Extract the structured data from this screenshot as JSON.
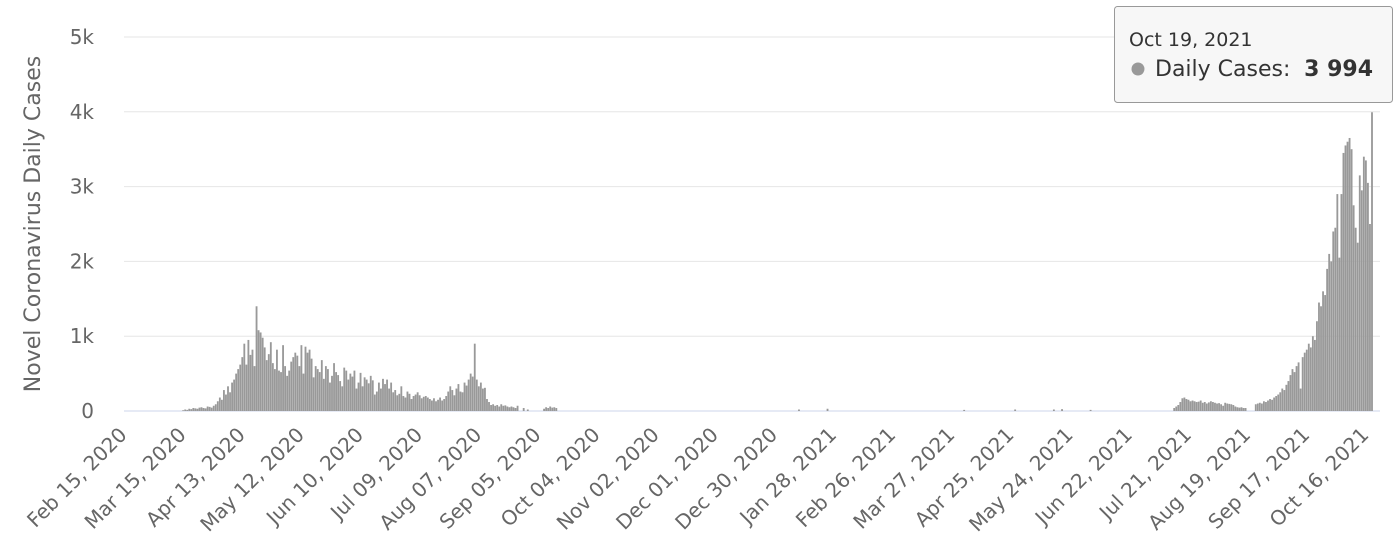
{
  "chart_data": {
    "type": "bar",
    "ylabel": "Novel Coronavirus Daily Cases",
    "color": "#999999",
    "grid": true,
    "ylim": [
      0,
      5000
    ],
    "yticks": [
      0,
      {
        "value": 1000,
        "label": "1k"
      },
      {
        "value": 2000,
        "label": "2k"
      },
      {
        "value": 3000,
        "label": "3k"
      },
      {
        "value": 4000,
        "label": "4k"
      },
      {
        "value": 5000,
        "label": "5k"
      }
    ],
    "tooltip": {
      "date": "Oct 19, 2021",
      "series_label": "Daily Cases:",
      "value_label": "3 994"
    },
    "categories": [
      "Feb 15, 2020",
      null,
      null,
      null,
      null,
      null,
      null,
      null,
      null,
      null,
      null,
      null,
      null,
      null,
      null,
      null,
      null,
      null,
      null,
      null,
      null,
      null,
      null,
      null,
      null,
      null,
      null,
      null,
      null,
      "Mar 15, 2020",
      null,
      null,
      null,
      null,
      null,
      null,
      null,
      null,
      null,
      null,
      null,
      null,
      null,
      null,
      null,
      null,
      null,
      null,
      null,
      null,
      null,
      null,
      null,
      null,
      null,
      null,
      null,
      null,
      "Apr 13, 2020",
      null,
      null,
      null,
      null,
      null,
      null,
      null,
      null,
      null,
      null,
      null,
      null,
      null,
      null,
      null,
      null,
      null,
      null,
      null,
      null,
      null,
      null,
      null,
      null,
      null,
      null,
      null,
      null,
      "May 12, 2020",
      null,
      null,
      null,
      null,
      null,
      null,
      null,
      null,
      null,
      null,
      null,
      null,
      null,
      null,
      null,
      null,
      null,
      null,
      null,
      null,
      null,
      null,
      null,
      null,
      null,
      null,
      null,
      null,
      "Jun 10, 2020",
      null,
      null,
      null,
      null,
      null,
      null,
      null,
      null,
      null,
      null,
      null,
      null,
      null,
      null,
      null,
      null,
      null,
      null,
      null,
      null,
      null,
      null,
      null,
      null,
      null,
      null,
      null,
      null,
      "Jul 09, 2020",
      null,
      null,
      null,
      null,
      null,
      null,
      null,
      null,
      null,
      null,
      null,
      null,
      null,
      null,
      null,
      null,
      null,
      null,
      null,
      null,
      null,
      null,
      null,
      null,
      null,
      null,
      null,
      null,
      "Aug 07, 2020",
      null,
      null,
      null,
      null,
      null,
      null,
      null,
      null,
      null,
      null,
      null,
      null,
      null,
      null,
      null,
      null,
      null,
      null,
      null,
      null,
      null,
      null,
      null,
      null,
      null,
      null,
      null,
      null,
      "Sep 05, 2020",
      null,
      null,
      null,
      null,
      null,
      null,
      null,
      null,
      null,
      null,
      null,
      null,
      null,
      null,
      null,
      null,
      null,
      null,
      null,
      null,
      null,
      null,
      null,
      null,
      null,
      null,
      null,
      null,
      "Oct 04, 2020",
      null,
      null,
      null,
      null,
      null,
      null,
      null,
      null,
      null,
      null,
      null,
      null,
      null,
      null,
      null,
      null,
      null,
      null,
      null,
      null,
      null,
      null,
      null,
      null,
      null,
      null,
      null,
      null,
      "Nov 02, 2020",
      null,
      null,
      null,
      null,
      null,
      null,
      null,
      null,
      null,
      null,
      null,
      null,
      null,
      null,
      null,
      null,
      null,
      null,
      null,
      null,
      null,
      null,
      null,
      null,
      null,
      null,
      null,
      null,
      "Dec 01, 2020",
      null,
      null,
      null,
      null,
      null,
      null,
      null,
      null,
      null,
      null,
      null,
      null,
      null,
      null,
      null,
      null,
      null,
      null,
      null,
      null,
      null,
      null,
      null,
      null,
      null,
      null,
      null,
      null,
      "Dec 30, 2020",
      null,
      null,
      null,
      null,
      null,
      null,
      null,
      null,
      null,
      null,
      null,
      null,
      null,
      null,
      null,
      null,
      null,
      null,
      null,
      null,
      null,
      null,
      null,
      null,
      null,
      null,
      null,
      null,
      "Jan 28, 2021",
      null,
      null,
      null,
      null,
      null,
      null,
      null,
      null,
      null,
      null,
      null,
      null,
      null,
      null,
      null,
      null,
      null,
      null,
      null,
      null,
      null,
      null,
      null,
      null,
      null,
      null,
      null,
      null,
      "Feb 26, 2021",
      null,
      null,
      null,
      null,
      null,
      null,
      null,
      null,
      null,
      null,
      null,
      null,
      null,
      null,
      null,
      null,
      null,
      null,
      null,
      null,
      null,
      null,
      null,
      null,
      null,
      null,
      null,
      null,
      "Mar 27, 2021",
      null,
      null,
      null,
      null,
      null,
      null,
      null,
      null,
      null,
      null,
      null,
      null,
      null,
      null,
      null,
      null,
      null,
      null,
      null,
      null,
      null,
      null,
      null,
      null,
      null,
      null,
      null,
      null,
      "Apr 25, 2021",
      null,
      null,
      null,
      null,
      null,
      null,
      null,
      null,
      null,
      null,
      null,
      null,
      null,
      null,
      null,
      null,
      null,
      null,
      null,
      null,
      null,
      null,
      null,
      null,
      null,
      null,
      null,
      null,
      "May 24, 2021",
      null,
      null,
      null,
      null,
      null,
      null,
      null,
      null,
      null,
      null,
      null,
      null,
      null,
      null,
      null,
      null,
      null,
      null,
      null,
      null,
      null,
      null,
      null,
      null,
      null,
      null,
      null,
      null,
      "Jun 22, 2021",
      null,
      null,
      null,
      null,
      null,
      null,
      null,
      null,
      null,
      null,
      null,
      null,
      null,
      null,
      null,
      null,
      null,
      null,
      null,
      null,
      null,
      null,
      null,
      null,
      null,
      null,
      null,
      null,
      "Jul 21, 2021",
      null,
      null,
      null,
      null,
      null,
      null,
      null,
      null,
      null,
      null,
      null,
      null,
      null,
      null,
      null,
      null,
      null,
      null,
      null,
      null,
      null,
      null,
      null,
      null,
      null,
      null,
      null,
      null,
      "Aug 19, 2021",
      null,
      null,
      null,
      null,
      null,
      null,
      null,
      null,
      null,
      null,
      null,
      null,
      null,
      null,
      null,
      null,
      null,
      null,
      null,
      null,
      null,
      null,
      null,
      null,
      null,
      null,
      null,
      null,
      "Sep 17, 2021",
      null,
      null,
      null,
      null,
      null,
      null,
      null,
      null,
      null,
      null,
      null,
      null,
      null,
      null,
      null,
      null,
      null,
      null,
      null,
      null,
      null,
      null,
      null,
      null,
      null,
      null,
      null,
      null,
      "Oct 16, 2021",
      null,
      null,
      null
    ],
    "values": [
      0,
      0,
      0,
      0,
      0,
      0,
      0,
      0,
      0,
      0,
      0,
      0,
      0,
      0,
      0,
      0,
      0,
      0,
      0,
      0,
      0,
      0,
      0,
      0,
      0,
      0,
      0,
      0,
      0,
      10,
      20,
      15,
      30,
      25,
      40,
      35,
      30,
      45,
      50,
      40,
      35,
      60,
      55,
      45,
      70,
      90,
      130,
      180,
      150,
      280,
      220,
      330,
      250,
      380,
      420,
      500,
      560,
      620,
      720,
      900,
      620,
      950,
      750,
      820,
      600,
      1400,
      1080,
      1050,
      980,
      850,
      680,
      760,
      920,
      640,
      560,
      820,
      540,
      520,
      880,
      600,
      470,
      540,
      660,
      720,
      780,
      740,
      600,
      880,
      500,
      860,
      780,
      820,
      700,
      450,
      600,
      560,
      520,
      680,
      430,
      600,
      560,
      380,
      470,
      640,
      520,
      480,
      400,
      330,
      580,
      540,
      420,
      500,
      460,
      540,
      300,
      380,
      510,
      330,
      450,
      420,
      370,
      470,
      410,
      220,
      260,
      380,
      300,
      430,
      360,
      420,
      300,
      380,
      250,
      280,
      210,
      230,
      330,
      200,
      180,
      260,
      230,
      160,
      200,
      220,
      250,
      210,
      170,
      190,
      200,
      180,
      160,
      140,
      170,
      130,
      150,
      180,
      140,
      160,
      200,
      260,
      330,
      280,
      210,
      300,
      360,
      260,
      250,
      380,
      340,
      420,
      500,
      460,
      900,
      420,
      330,
      380,
      300,
      310,
      160,
      120,
      80,
      90,
      70,
      80,
      60,
      90,
      70,
      75,
      60,
      50,
      60,
      50,
      40,
      70,
      0,
      0,
      40,
      0,
      20,
      0,
      0,
      0,
      0,
      0,
      0,
      0,
      30,
      50,
      40,
      60,
      45,
      50,
      40,
      0,
      0,
      0,
      0,
      0,
      0,
      0,
      0,
      0,
      0,
      0,
      0,
      0,
      0,
      0,
      0,
      0,
      0,
      0,
      0,
      0,
      0,
      0,
      0,
      0,
      0,
      0,
      0,
      0,
      0,
      0,
      0,
      0,
      0,
      0,
      0,
      0,
      0,
      0,
      0,
      0,
      0,
      0,
      0,
      0,
      0,
      0,
      0,
      0,
      0,
      0,
      0,
      0,
      0,
      0,
      0,
      0,
      0,
      0,
      0,
      0,
      0,
      0,
      0,
      0,
      0,
      0,
      0,
      0,
      0,
      0,
      0,
      0,
      0,
      0,
      0,
      0,
      0,
      0,
      0,
      0,
      0,
      0,
      0,
      0,
      0,
      0,
      0,
      0,
      0,
      0,
      0,
      0,
      0,
      0,
      0,
      0,
      0,
      0,
      0,
      0,
      0,
      0,
      0,
      0,
      0,
      0,
      0,
      0,
      0,
      0,
      0,
      0,
      0,
      0,
      0,
      0,
      0,
      20,
      0,
      0,
      0,
      0,
      0,
      0,
      0,
      0,
      0,
      0,
      0,
      0,
      0,
      30,
      0,
      0,
      0,
      0,
      0,
      0,
      0,
      0,
      0,
      0,
      0,
      0,
      0,
      0,
      0,
      0,
      0,
      0,
      0,
      0,
      0,
      0,
      0,
      0,
      0,
      0,
      0,
      0,
      0,
      0,
      0,
      0,
      0,
      0,
      0,
      0,
      0,
      0,
      0,
      0,
      0,
      0,
      0,
      0,
      0,
      0,
      0,
      0,
      0,
      0,
      0,
      0,
      0,
      0,
      0,
      0,
      0,
      0,
      0,
      0,
      0,
      0,
      0,
      0,
      0,
      0,
      15,
      0,
      0,
      0,
      0,
      0,
      0,
      0,
      0,
      0,
      0,
      0,
      0,
      0,
      0,
      0,
      0,
      0,
      0,
      0,
      0,
      0,
      0,
      0,
      0,
      20,
      0,
      0,
      0,
      0,
      0,
      0,
      0,
      0,
      0,
      0,
      0,
      0,
      0,
      0,
      0,
      0,
      0,
      0,
      20,
      0,
      0,
      0,
      25,
      0,
      0,
      0,
      0,
      0,
      0,
      0,
      0,
      0,
      0,
      0,
      0,
      0,
      15,
      0,
      0,
      0,
      0,
      0,
      0,
      0,
      0,
      0,
      0,
      0,
      0,
      0,
      0,
      0,
      0,
      0,
      0,
      0,
      0,
      0,
      0,
      0,
      0,
      0,
      0,
      0,
      0,
      0,
      0,
      0,
      0,
      0,
      0,
      0,
      0,
      0,
      0,
      0,
      0,
      40,
      60,
      80,
      120,
      170,
      180,
      160,
      150,
      130,
      140,
      130,
      120,
      125,
      140,
      110,
      120,
      100,
      115,
      130,
      120,
      110,
      100,
      105,
      90,
      70,
      110,
      100,
      95,
      90,
      80,
      60,
      50,
      45,
      50,
      40,
      40,
      0,
      0,
      0,
      0,
      90,
      100,
      110,
      100,
      130,
      120,
      140,
      160,
      150,
      180,
      200,
      220,
      250,
      300,
      280,
      350,
      400,
      480,
      560,
      520,
      600,
      650,
      300,
      720,
      780,
      820,
      900,
      850,
      1000,
      950,
      1200,
      1450,
      1400,
      1600,
      1550,
      1900,
      2100,
      2000,
      2400,
      2450,
      2900,
      2050,
      2900,
      3450,
      3550,
      3600,
      3650,
      3500,
      2750,
      2450,
      2250,
      3150,
      2950,
      3400,
      3350,
      3050,
      2500,
      3994
    ]
  }
}
